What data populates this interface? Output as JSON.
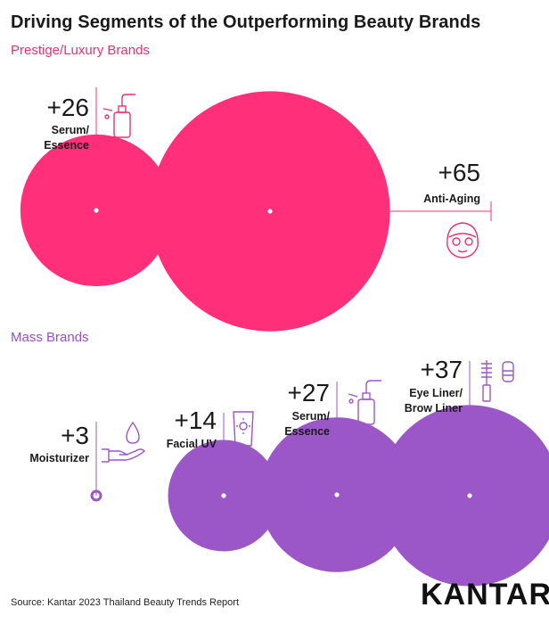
{
  "title": "Driving Segments of the Outperforming Beauty Brands",
  "source": "Source: Kantar 2023 Thailand Beauty Trends Report",
  "logo_text": "KANTAR",
  "colors": {
    "prestige": "#ff2f79",
    "mass": "#9b57c8"
  },
  "chart_data": [
    {
      "type": "bubble",
      "title": "Prestige/Luxury Brands",
      "points": [
        {
          "label": "+26",
          "category": [
            "Serum/",
            "Essence"
          ],
          "value": 26,
          "icon": "serum-dropper-bottle-icon"
        },
        {
          "label": "+65",
          "category": [
            "Anti-Aging"
          ],
          "value": 65,
          "icon": "face-mask-icon"
        }
      ]
    },
    {
      "type": "bubble",
      "title": "Mass Brands",
      "points": [
        {
          "label": "+3",
          "category": [
            "Moisturizer"
          ],
          "value": 3,
          "icon": "hand-drop-icon"
        },
        {
          "label": "+14",
          "category": [
            "Facial UV"
          ],
          "value": 14,
          "icon": "sunscreen-tube-icon"
        },
        {
          "label": "+27",
          "category": [
            "Serum/",
            "Essence"
          ],
          "value": 27,
          "icon": "serum-dropper-bottle-icon"
        },
        {
          "label": "+37",
          "category": [
            "Eye Liner/",
            "Brow Liner"
          ],
          "value": 37,
          "icon": "mascara-liner-icon"
        }
      ]
    }
  ]
}
